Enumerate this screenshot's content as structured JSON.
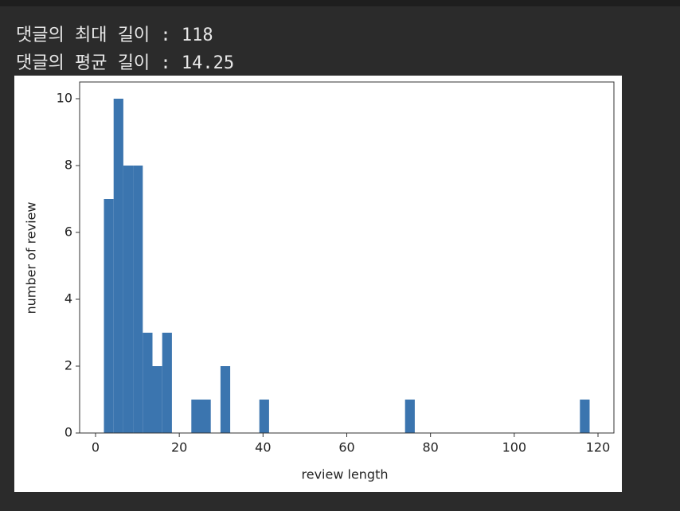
{
  "output": {
    "lines": [
      "댓글의 최대 길이 : 118",
      "댓글의 평균 길이 : 14.25"
    ]
  },
  "chart_data": {
    "type": "histogram",
    "xlabel": "review length",
    "ylabel": "number of review",
    "color": "#3b75af",
    "bins": [
      2,
      4.32,
      6.64,
      8.96,
      11.28,
      13.6,
      15.92,
      18.24,
      20.56,
      22.88,
      25.2,
      27.52,
      29.84,
      32.16,
      34.48,
      36.8,
      39.12,
      41.44,
      43.76,
      46.08,
      48.4,
      50.72,
      53.04,
      55.36,
      57.68,
      60,
      62.32,
      64.64,
      66.96,
      69.28,
      71.6,
      73.92,
      76.24,
      78.56,
      80.88,
      83.2,
      85.52,
      87.84,
      90.16,
      92.48,
      94.8,
      97.12,
      99.44,
      101.76,
      104.08,
      106.4,
      108.72,
      111.04,
      113.36,
      115.68,
      118
    ],
    "values": [
      7,
      10,
      8,
      8,
      3,
      2,
      3,
      0,
      0,
      1,
      1,
      0,
      2,
      0,
      0,
      0,
      1,
      0,
      0,
      0,
      0,
      0,
      0,
      0,
      0,
      0,
      0,
      0,
      0,
      0,
      0,
      1,
      0,
      0,
      0,
      0,
      0,
      0,
      0,
      0,
      0,
      0,
      0,
      0,
      0,
      0,
      0,
      0,
      0,
      1
    ],
    "xlim": [
      -3.8,
      123.8
    ],
    "ylim": [
      0,
      10.5
    ],
    "xticks": [
      0,
      20,
      40,
      60,
      80,
      100,
      120
    ],
    "yticks": [
      0,
      2,
      4,
      6,
      8,
      10
    ],
    "grid": false
  }
}
